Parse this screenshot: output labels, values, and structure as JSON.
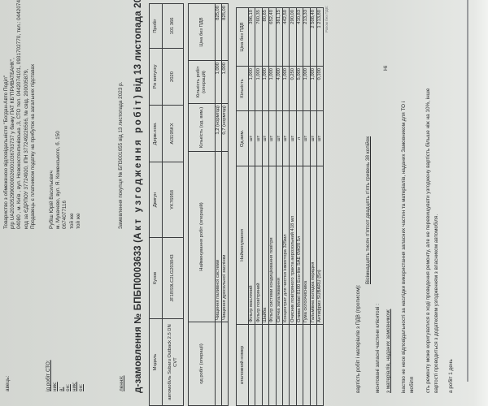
{
  "labels": {
    "supplier": "авець:",
    "place": "ід робіт СТО:",
    "customer": "ник:",
    "address": "а:",
    "phone": "он:",
    "payer": "ник:",
    "recipient": "он:",
    "order": "лення:"
  },
  "supplier": {
    "lines": [
      "Товариство з обмеженою відповідальністю \"Богдан-Авто Поділ\"",
      "р/р UA203052990000026001036703737 у банку ПАТ КБ\"ПРИВАТБАНК\",",
      "04080 , м. Київ , вул. Новокостянтинівська ,3, СТО тел. 0442074101, 0931702770, тел.: 0442074100,",
      "код за ЄДРПОУ 37724920, ІПН 377249226566, № свід. 200005879,",
      "Продавець є платником податку на прибуток на загальних підставах"
    ]
  },
  "customer": {
    "name": "Рубіш Юрій Васильович",
    "address": "м. Мукачево, вул. Я. Коменського, б. 150",
    "phone": "0674077116",
    "payer": "той же",
    "recipient": "той же"
  },
  "order_ref": "Замовлення покупця № БПЗ001655 від 13 листопада 2023 р.",
  "title": {
    "main": "д-замовлення № БПБП0003633 (",
    "spaced": "Акт узгодження робіт",
    "tail": ") від 13 листопада 2023 р."
  },
  "vehicle": {
    "headers": [
      "Модель",
      "Кузов",
      "Двигун",
      "Держ.ном.",
      "Рік випуску",
      "Пробіг"
    ],
    "values": [
      "автомобіль Subaru Outback 2.5 DN CVT",
      "JF1BS9LC2LG203043",
      "YK76958",
      "AI3195KX",
      "2020",
      "101 366"
    ]
  },
  "works": {
    "headers": [
      "од робіт (операції)",
      "Найменування робіт (операцій)",
      "Кількість (од. вим.)",
      "Кількість робіт (операцій)",
      "Ціна без ПДВ"
    ],
    "rows": [
      [
        "",
        "Чищення паливної системи",
        "1,2 (нормгод)",
        "1,000",
        "825,00"
      ],
      [
        "",
        "Чищення дросельної заслінки",
        "0,7 (нормгод)",
        "1,000",
        "825,00"
      ]
    ]
  },
  "parts": {
    "headers": [
      "аталожний номер",
      "Найменування",
      "Од.вим.",
      "Кількість",
      "Ціна без ПДВ"
    ],
    "rows": [
      [
        "",
        "Фільтр масляний",
        "шт",
        "1,000",
        "396,10"
      ],
      [
        "",
        "Фільтр повітряний",
        "шт",
        "1,000",
        "760,35"
      ],
      [
        "",
        "Шайба",
        "шт",
        "1,000",
        "80,65"
      ],
      [
        "",
        "Фільтр системи кондиціювання повітря",
        "шт",
        "1,000",
        "652,40"
      ],
      [
        "",
        "Свічка запалювання",
        "шт",
        "4,000",
        "361,15"
      ],
      [
        "",
        "Концентрат для чистки інжектора 325мл",
        "шт",
        "1,000",
        "442,50"
      ],
      [
        "",
        "Очисник повітряного тракта аерозольний 418 мл",
        "шт",
        "0,250",
        "290,00"
      ],
      [
        "",
        "Олива Mobil 8100 Eco-lite SAE 0W20 5л",
        "л",
        "5,000",
        "410,83"
      ],
      [
        "",
        "Гума склоочисника",
        "шт",
        "1,000",
        "213,33"
      ],
      [
        "",
        "Гальмівна колодка передня",
        "шт",
        "1,000",
        "2 508,40"
      ],
      [
        "",
        "Антифриз SUBARU (5л)",
        "шт",
        "0,100",
        "1 213,80"
      ]
    ]
  },
  "totals_note": "Разом без ПДВ:",
  "footer": {
    "total_words_label": "вартість робіт і матеріалів з ПДВ (прописом):",
    "total_words": "Вісімнадцять тисяч п'ятсот двадцять п'ять гривень 38 копійок",
    "return_parts_label": "монтовані запасні частини клієнтові :",
    "return_parts_value": "Ні",
    "customer_materials_label": "з матеріалів, наданих замовником:",
    "disclaimer_1": "ікаство не несе відповідальності за наслідки використання запасних частин та матеріалів, наданих Замовником для ТО і",
    "disclaimer_1b": "мобіля",
    "disclaimer_2": "сть ремонту може коригуватися в ході проведення ремонту, але не перевищувати узгоджену вартість більше ніж на 10%, інше",
    "disclaimer_2b": "вартості проводиться з додатковим узгодженням з власником автомобіля.",
    "duration": "а робіт 1 день"
  }
}
